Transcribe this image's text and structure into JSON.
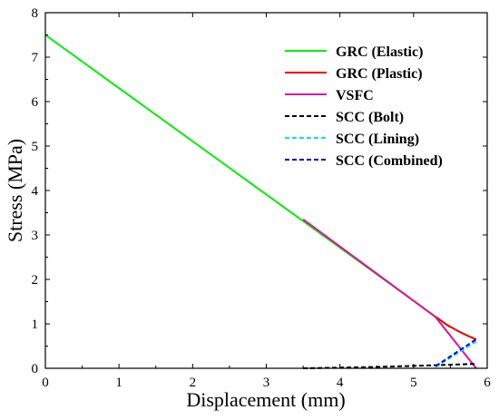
{
  "chart_data": {
    "type": "line",
    "xlabel": "Displacement (mm)",
    "ylabel": "Stress (MPa)",
    "xlim": [
      0,
      6
    ],
    "ylim": [
      0,
      8
    ],
    "x_ticks": [
      0,
      1,
      2,
      3,
      4,
      5,
      6
    ],
    "y_ticks": [
      0,
      1,
      2,
      3,
      4,
      5,
      6,
      7,
      8
    ],
    "grid": false,
    "legend_position": "top-right",
    "series": [
      {
        "name": "GRC (Elastic)",
        "color": "#00ee00",
        "dash": "solid",
        "x": [
          0,
          5.5
        ],
        "y": [
          7.5,
          0.92
        ]
      },
      {
        "name": "GRC (Plastic)",
        "color": "#ee0000",
        "dash": "solid",
        "x": [
          5.3,
          5.45,
          5.6,
          5.75,
          5.85
        ],
        "y": [
          1.16,
          0.98,
          0.84,
          0.72,
          0.65
        ]
      },
      {
        "name": "VSFC",
        "color": "#e0109a",
        "dash": "solid",
        "x": [
          3.5,
          5.3,
          5.85
        ],
        "y": [
          3.35,
          1.15,
          0.0
        ]
      },
      {
        "name": "SCC (Bolt)",
        "color": "#000000",
        "dash": "dashed",
        "x": [
          3.5,
          4.5,
          5.3,
          5.85
        ],
        "y": [
          0.0,
          0.03,
          0.07,
          0.1
        ]
      },
      {
        "name": "SCC (Lining)",
        "color": "#00e5ee",
        "dash": "dashed",
        "x": [
          5.3,
          5.85
        ],
        "y": [
          0.03,
          0.6
        ]
      },
      {
        "name": "SCC (Combined)",
        "color": "#0000cc",
        "dash": "dashed",
        "x": [
          5.3,
          5.85
        ],
        "y": [
          0.05,
          0.65
        ]
      }
    ]
  }
}
